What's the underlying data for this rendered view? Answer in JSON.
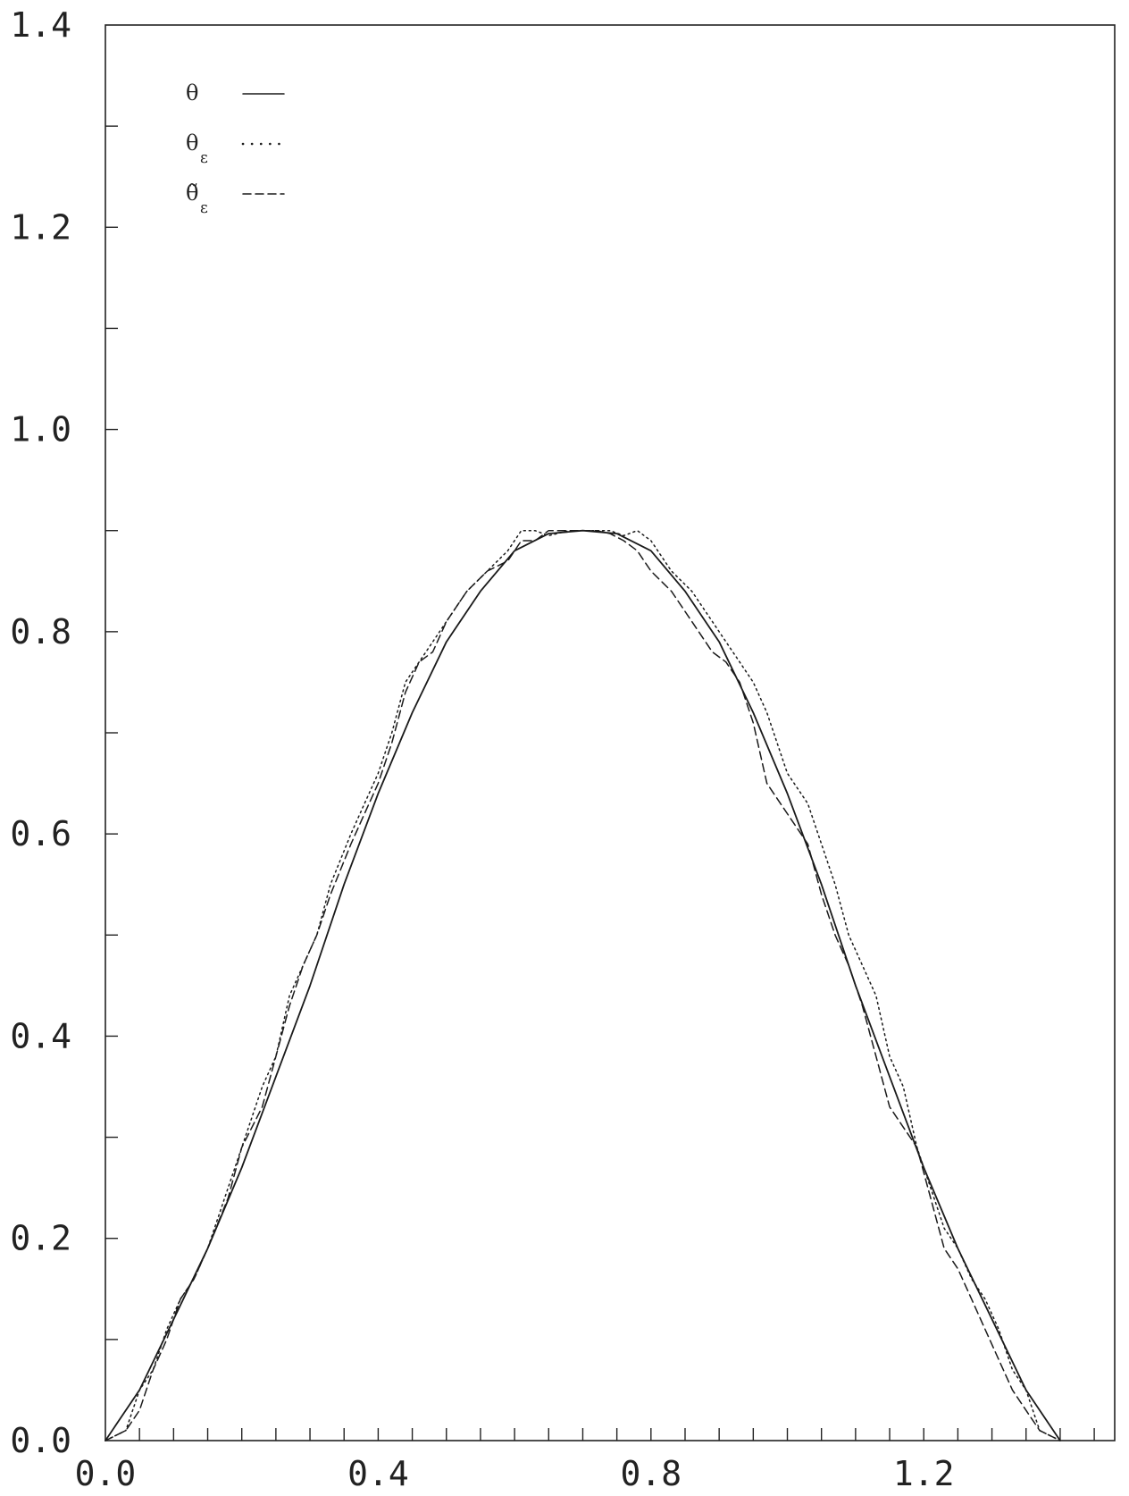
{
  "chart_data": {
    "type": "line",
    "title": "",
    "xlabel": "",
    "ylabel": "",
    "xlim": [
      0.0,
      1.48
    ],
    "ylim": [
      0.0,
      1.4
    ],
    "x_ticks_labeled": [
      "0.0",
      "0.4",
      "0.8",
      "1.2"
    ],
    "x_tick_values_labeled": [
      0.0,
      0.4,
      0.8,
      1.2
    ],
    "x_tick_minor_step": 0.05,
    "y_ticks_labeled": [
      "0.0",
      "0.2",
      "0.4",
      "0.6",
      "0.8",
      "1.0",
      "1.2",
      "1.4"
    ],
    "y_tick_values_labeled": [
      0.0,
      0.2,
      0.4,
      0.6,
      0.8,
      1.0,
      1.2,
      1.4
    ],
    "y_tick_minor_step": 0.1,
    "grid": false,
    "legend_position": "top-left",
    "series": [
      {
        "name": "θ",
        "legend_symbol": "θ",
        "legend_subscript": "",
        "style": "solid",
        "color": "#1a1a1a",
        "x": [
          0.0,
          0.05,
          0.1,
          0.15,
          0.2,
          0.25,
          0.3,
          0.35,
          0.4,
          0.45,
          0.5,
          0.55,
          0.6,
          0.65,
          0.7,
          0.75,
          0.8,
          0.85,
          0.9,
          0.95,
          1.0,
          1.05,
          1.1,
          1.15,
          1.2,
          1.25,
          1.3,
          1.35,
          1.4
        ],
        "y": [
          0.0,
          0.05,
          0.12,
          0.19,
          0.27,
          0.36,
          0.45,
          0.55,
          0.64,
          0.72,
          0.79,
          0.84,
          0.88,
          0.897,
          0.9,
          0.897,
          0.88,
          0.84,
          0.79,
          0.72,
          0.64,
          0.55,
          0.45,
          0.36,
          0.27,
          0.19,
          0.12,
          0.05,
          0.0
        ]
      },
      {
        "name": "θε",
        "legend_symbol": "θ",
        "legend_subscript": "ε",
        "style": "dotted",
        "color": "#1a1a1a",
        "x": [
          0.0,
          0.03,
          0.05,
          0.07,
          0.09,
          0.11,
          0.13,
          0.15,
          0.18,
          0.2,
          0.23,
          0.25,
          0.27,
          0.29,
          0.31,
          0.33,
          0.36,
          0.38,
          0.4,
          0.42,
          0.44,
          0.46,
          0.48,
          0.5,
          0.53,
          0.56,
          0.59,
          0.61,
          0.63,
          0.65,
          0.68,
          0.7,
          0.72,
          0.74,
          0.76,
          0.78,
          0.8,
          0.83,
          0.86,
          0.89,
          0.91,
          0.93,
          0.95,
          0.97,
          1.0,
          1.03,
          1.05,
          1.07,
          1.09,
          1.11,
          1.13,
          1.15,
          1.17,
          1.19,
          1.21,
          1.23,
          1.25,
          1.27,
          1.29,
          1.31,
          1.33,
          1.35,
          1.37,
          1.4
        ],
        "y": [
          0.0,
          0.01,
          0.05,
          0.07,
          0.11,
          0.14,
          0.16,
          0.19,
          0.25,
          0.29,
          0.35,
          0.38,
          0.44,
          0.47,
          0.5,
          0.55,
          0.6,
          0.63,
          0.66,
          0.7,
          0.75,
          0.77,
          0.79,
          0.81,
          0.84,
          0.86,
          0.88,
          0.9,
          0.9,
          0.895,
          0.9,
          0.9,
          0.9,
          0.9,
          0.895,
          0.9,
          0.89,
          0.86,
          0.84,
          0.81,
          0.79,
          0.77,
          0.75,
          0.72,
          0.66,
          0.63,
          0.59,
          0.55,
          0.5,
          0.47,
          0.44,
          0.38,
          0.35,
          0.29,
          0.25,
          0.21,
          0.19,
          0.16,
          0.14,
          0.11,
          0.07,
          0.05,
          0.01,
          0.0
        ]
      },
      {
        "name": "θ̃ε",
        "legend_symbol": "θ̃",
        "legend_subscript": "ε",
        "style": "dashed",
        "color": "#1a1a1a",
        "x": [
          0.0,
          0.03,
          0.05,
          0.07,
          0.09,
          0.11,
          0.13,
          0.15,
          0.18,
          0.2,
          0.23,
          0.25,
          0.27,
          0.29,
          0.31,
          0.33,
          0.36,
          0.38,
          0.4,
          0.42,
          0.44,
          0.46,
          0.48,
          0.5,
          0.53,
          0.56,
          0.59,
          0.61,
          0.63,
          0.65,
          0.68,
          0.7,
          0.72,
          0.74,
          0.76,
          0.78,
          0.8,
          0.83,
          0.86,
          0.89,
          0.91,
          0.93,
          0.95,
          0.97,
          1.0,
          1.03,
          1.05,
          1.07,
          1.09,
          1.11,
          1.13,
          1.15,
          1.17,
          1.19,
          1.21,
          1.23,
          1.25,
          1.27,
          1.29,
          1.31,
          1.33,
          1.35,
          1.37,
          1.4
        ],
        "y": [
          0.0,
          0.01,
          0.03,
          0.07,
          0.1,
          0.14,
          0.16,
          0.19,
          0.24,
          0.29,
          0.33,
          0.38,
          0.43,
          0.47,
          0.5,
          0.54,
          0.59,
          0.62,
          0.65,
          0.69,
          0.74,
          0.77,
          0.78,
          0.81,
          0.84,
          0.86,
          0.87,
          0.89,
          0.89,
          0.9,
          0.9,
          0.9,
          0.9,
          0.897,
          0.89,
          0.88,
          0.86,
          0.84,
          0.81,
          0.78,
          0.77,
          0.75,
          0.71,
          0.65,
          0.62,
          0.59,
          0.54,
          0.5,
          0.47,
          0.43,
          0.38,
          0.33,
          0.31,
          0.29,
          0.24,
          0.19,
          0.17,
          0.14,
          0.11,
          0.08,
          0.05,
          0.03,
          0.01,
          0.0
        ]
      }
    ]
  }
}
